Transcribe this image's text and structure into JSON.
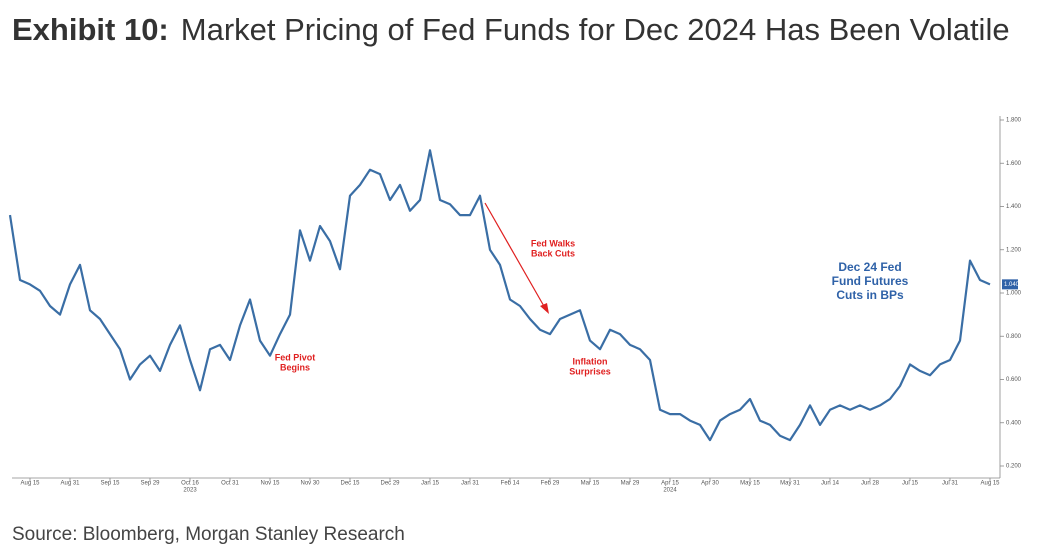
{
  "chart_data": {
    "type": "line",
    "title_prefix": "Exhibit 10:",
    "title": "Market Pricing of Fed Funds for Dec 2024 Has Been Volatile",
    "source": "Source: Bloomberg, Morgan Stanley Research",
    "categories": [
      null,
      null,
      "Aug 15",
      null,
      null,
      null,
      "Aug 31",
      null,
      null,
      null,
      "Sep 15",
      null,
      null,
      null,
      "Sep 29",
      null,
      null,
      null,
      "Oct 16",
      null,
      null,
      null,
      "Oct 31",
      null,
      null,
      null,
      "Nov 15",
      null,
      null,
      null,
      "Nov 30",
      null,
      null,
      null,
      "Dec 15",
      null,
      null,
      null,
      "Dec 29",
      null,
      null,
      null,
      "Jan 15",
      null,
      null,
      null,
      "Jan 31",
      null,
      null,
      null,
      "Feb 14",
      null,
      null,
      null,
      "Feb 29",
      null,
      null,
      null,
      "Mar 15",
      null,
      null,
      null,
      "Mar 29",
      null,
      null,
      null,
      "Apr 15",
      null,
      null,
      null,
      "Apr 30",
      null,
      null,
      null,
      "May 15",
      null,
      null,
      null,
      "May 31",
      null,
      null,
      null,
      "Jun 14",
      null,
      null,
      null,
      "Jun 28",
      null,
      null,
      null,
      "Jul 15",
      null,
      null,
      null,
      "Jul 31",
      null,
      null,
      null,
      "Aug 15"
    ],
    "year_labels": [
      {
        "index": 18,
        "label": "2023"
      },
      {
        "index": 66,
        "label": "2024"
      }
    ],
    "series": [
      {
        "name": "Dec 24 Fed Fund Futures Cuts in BPs",
        "color": "#3a6ea5",
        "values": [
          1.36,
          1.06,
          1.04,
          1.01,
          0.94,
          0.9,
          1.04,
          1.13,
          0.92,
          0.88,
          0.81,
          0.74,
          0.6,
          0.67,
          0.71,
          0.64,
          0.76,
          0.85,
          0.69,
          0.55,
          0.74,
          0.76,
          0.69,
          0.85,
          0.97,
          0.78,
          0.71,
          0.81,
          0.9,
          1.29,
          1.15,
          1.31,
          1.24,
          1.11,
          1.45,
          1.5,
          1.57,
          1.55,
          1.43,
          1.5,
          1.38,
          1.43,
          1.66,
          1.43,
          1.41,
          1.36,
          1.36,
          1.45,
          1.2,
          1.13,
          0.97,
          0.94,
          0.88,
          0.83,
          0.81,
          0.88,
          0.9,
          0.92,
          0.78,
          0.74,
          0.83,
          0.81,
          0.76,
          0.74,
          0.69,
          0.46,
          0.44,
          0.44,
          0.41,
          0.39,
          0.32,
          0.41,
          0.44,
          0.46,
          0.51,
          0.41,
          0.39,
          0.34,
          0.32,
          0.39,
          0.48,
          0.39,
          0.46,
          0.48,
          0.46,
          0.48,
          0.46,
          0.48,
          0.51,
          0.57,
          0.67,
          0.64,
          0.62,
          0.67,
          0.69,
          0.78,
          1.15,
          1.06,
          1.04
        ],
        "value_labels": [
          null,
          null,
          null,
          null,
          null,
          null,
          null,
          null,
          null,
          null,
          null,
          null,
          null,
          null,
          null,
          null,
          null,
          null,
          null,
          null,
          null,
          null,
          null,
          null,
          null,
          null,
          null,
          null,
          null,
          null,
          null,
          null,
          null,
          null,
          null,
          null,
          null,
          null,
          null,
          null,
          null,
          null,
          null,
          null,
          null,
          null,
          null,
          null,
          null,
          null,
          null,
          null,
          null,
          null,
          null,
          null,
          null,
          null,
          null,
          null,
          null,
          null,
          null,
          null,
          null,
          null,
          null,
          null,
          null,
          null,
          null,
          null,
          null,
          null,
          null,
          null,
          null,
          null,
          null,
          null,
          null,
          null,
          null,
          null,
          null,
          null,
          null,
          null,
          null,
          null,
          null,
          null,
          null,
          null,
          null,
          null,
          null,
          null,
          "1.040"
        ]
      }
    ],
    "annotations": [
      {
        "lines": [
          "Fed Pivot",
          "Begins"
        ],
        "index": 28
      },
      {
        "lines": [
          "Fed Walks",
          "Back Cuts"
        ],
        "index": 54
      },
      {
        "lines": [
          "Inflation",
          "Surprises"
        ],
        "index": 58
      },
      {
        "lines": [
          "Dec 24 Fed",
          "Fund Futures",
          "Cuts in BPs"
        ],
        "index": 86
      }
    ],
    "ylim": [
      0.2,
      1.8
    ],
    "yticks": [
      {
        "value": 0.2,
        "label": "0.200"
      },
      {
        "value": 0.4,
        "label": "0.400"
      },
      {
        "value": 0.6,
        "label": "0.600"
      },
      {
        "value": 0.8,
        "label": "0.800"
      },
      {
        "value": 1.0,
        "label": "1.000"
      },
      {
        "value": 1.2,
        "label": "1.200"
      },
      {
        "value": 1.4,
        "label": "1.400"
      },
      {
        "value": 1.6,
        "label": "1.600"
      },
      {
        "value": 1.8,
        "label": "1.800"
      }
    ],
    "grid": false
  }
}
